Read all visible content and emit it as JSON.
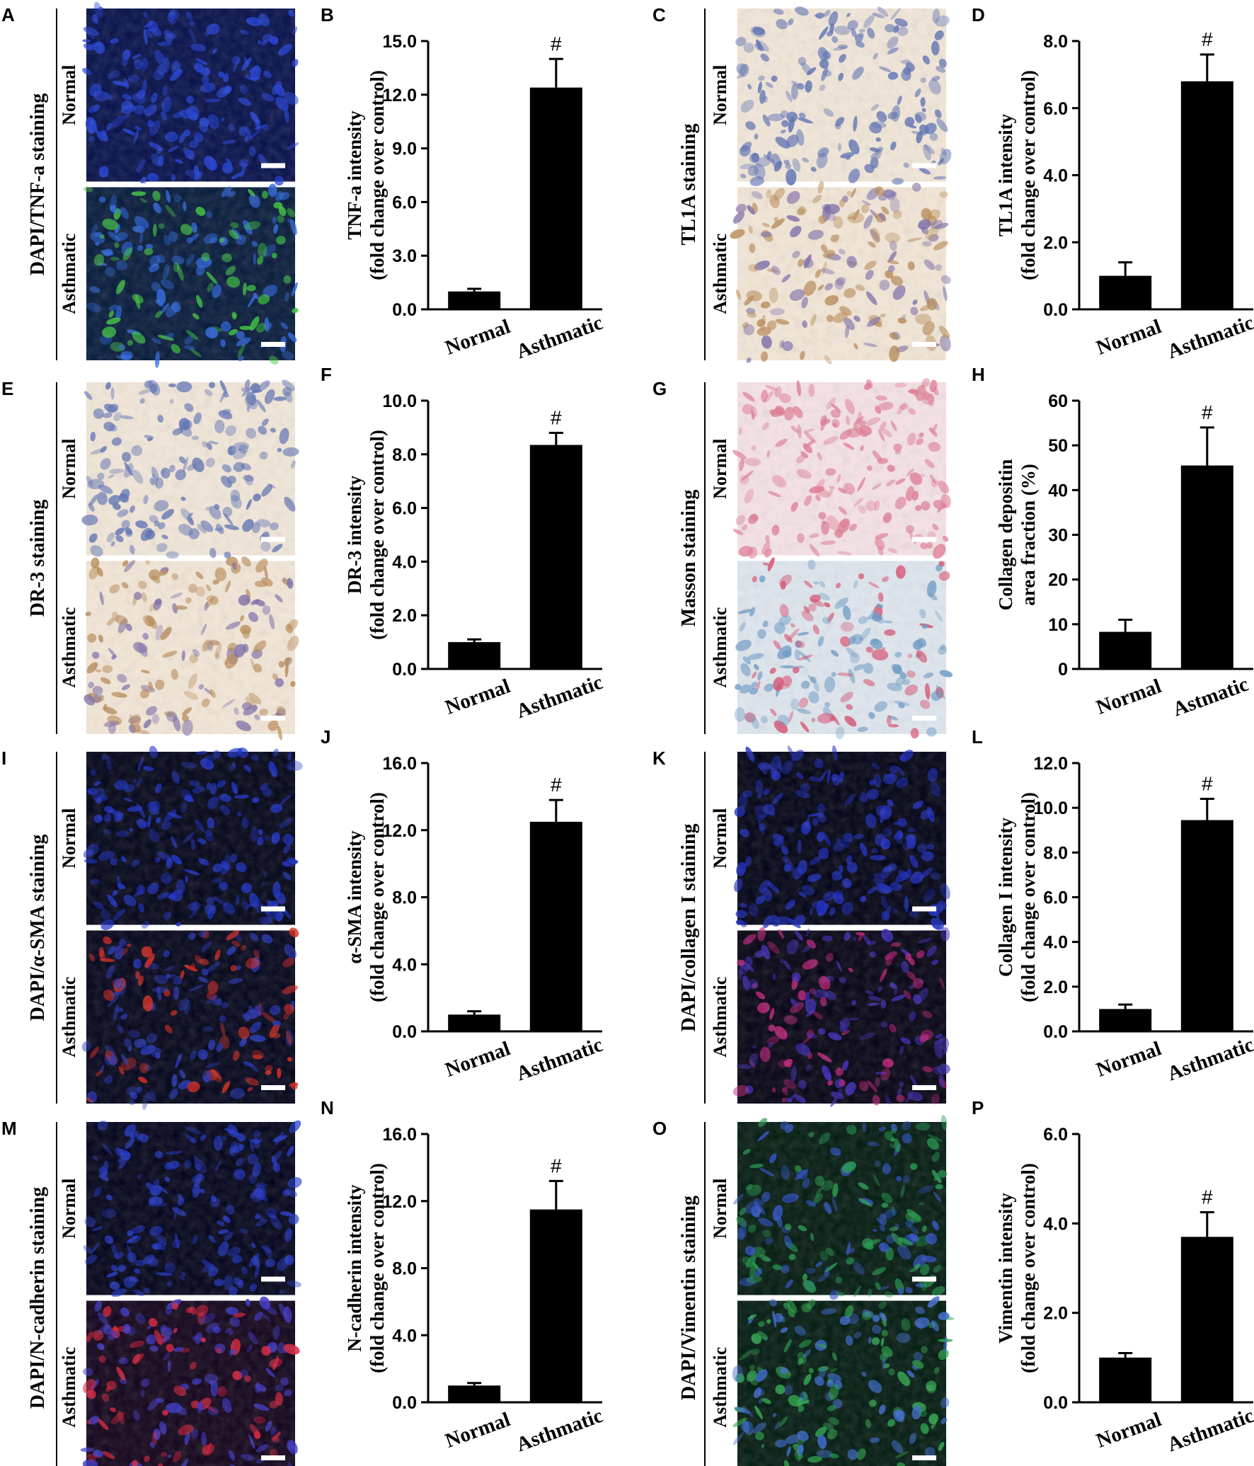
{
  "colors": {
    "bar": "#000000",
    "axis": "#000000",
    "background": "#ffffff",
    "scale_bar": "#ffffff"
  },
  "groups": [
    "Normal",
    "Asthmatic"
  ],
  "image_panels": [
    {
      "letter": "A",
      "label": "DAPI/TNF-a staining",
      "row_labels": [
        "Normal",
        "Asthmatic"
      ],
      "style": "fluor-blue-green"
    },
    {
      "letter": "C",
      "label": "TL1A staining",
      "row_labels": [
        "Normal",
        "Asthmatic"
      ],
      "style": "ihc"
    },
    {
      "letter": "E",
      "label": "DR-3 staining",
      "row_labels": [
        "Normal",
        "Asthmatic"
      ],
      "style": "ihc"
    },
    {
      "letter": "G",
      "label": "Masson staining",
      "row_labels": [
        "Normal",
        "Asthmatic"
      ],
      "style": "masson"
    },
    {
      "letter": "I",
      "label": "DAPI/α-SMA staining",
      "row_labels": [
        "Normal",
        "Asthmatic"
      ],
      "style": "fluor-blue-red"
    },
    {
      "letter": "K",
      "label": "DAPI/collagen I staining",
      "row_labels": [
        "Normal",
        "Asthmatic"
      ],
      "style": "fluor-blue-magenta"
    },
    {
      "letter": "M",
      "label": "DAPI/N-cadherin staining",
      "row_labels": [
        "Normal",
        "Asthmatic"
      ],
      "style": "fluor-blue-red2"
    },
    {
      "letter": "O",
      "label": "DAPI/Vimentin staining",
      "row_labels": [
        "Normal",
        "Asthmatic"
      ],
      "style": "fluor-green"
    }
  ],
  "chart_data": [
    {
      "letter": "B",
      "type": "bar",
      "categories": [
        "Normal",
        "Asthmatic"
      ],
      "values": [
        1.0,
        12.4
      ],
      "errors": [
        0.15,
        1.6
      ],
      "ylabel_lines": [
        "TNF-a intensity",
        "(fold change over control)"
      ],
      "ylim": [
        0,
        15
      ],
      "yticks": [
        "0.0",
        "3.0",
        "6.0",
        "9.0",
        "12.0",
        "15.0"
      ],
      "annotation": "#",
      "annotation_index": 1
    },
    {
      "letter": "D",
      "type": "bar",
      "categories": [
        "Normal",
        "Asthmatic"
      ],
      "values": [
        1.0,
        6.8
      ],
      "errors": [
        0.4,
        0.8
      ],
      "ylabel_lines": [
        "TL1A intensity",
        "(fold change over control)"
      ],
      "ylim": [
        0,
        8
      ],
      "yticks": [
        "0.0",
        "2.0",
        "4.0",
        "6.0",
        "8.0"
      ],
      "annotation": "#",
      "annotation_index": 1
    },
    {
      "letter": "F",
      "type": "bar",
      "categories": [
        "Normal",
        "Asthmatic"
      ],
      "values": [
        1.0,
        8.35
      ],
      "errors": [
        0.1,
        0.45
      ],
      "ylabel_lines": [
        "DR-3 intensity",
        "(fold change over control)"
      ],
      "ylim": [
        0,
        10
      ],
      "yticks": [
        "0.0",
        "2.0",
        "4.0",
        "6.0",
        "8.0",
        "10.0"
      ],
      "annotation": "#",
      "annotation_index": 1
    },
    {
      "letter": "H",
      "type": "bar",
      "categories": [
        "Normal",
        "Astmatic"
      ],
      "values": [
        8.3,
        45.5
      ],
      "errors": [
        2.7,
        8.5
      ],
      "ylabel_lines": [
        "Collagen depositin",
        "area fraction (%)"
      ],
      "ylim": [
        0,
        60
      ],
      "yticks": [
        "0",
        "10",
        "20",
        "30",
        "40",
        "50",
        "60"
      ],
      "annotation": "#",
      "annotation_index": 1
    },
    {
      "letter": "J",
      "type": "bar",
      "categories": [
        "Normal",
        "Asthmatic"
      ],
      "values": [
        1.0,
        12.5
      ],
      "errors": [
        0.2,
        1.3
      ],
      "ylabel_lines": [
        "α-SMA intensity",
        "(fold change over control)"
      ],
      "ylim": [
        0,
        16
      ],
      "yticks": [
        "0.0",
        "4.0",
        "8.0",
        "12.0",
        "16.0"
      ],
      "annotation": "#",
      "annotation_index": 1
    },
    {
      "letter": "L",
      "type": "bar",
      "categories": [
        "Normal",
        "Asthmatic"
      ],
      "values": [
        1.0,
        9.45
      ],
      "errors": [
        0.2,
        0.95
      ],
      "ylabel_lines": [
        "Collagen I intensity",
        "(fold change over control)"
      ],
      "ylim": [
        0,
        12
      ],
      "yticks": [
        "0.0",
        "2.0",
        "4.0",
        "6.0",
        "8.0",
        "10.0",
        "12.0"
      ],
      "annotation": "#",
      "annotation_index": 1
    },
    {
      "letter": "N",
      "type": "bar",
      "categories": [
        "Normal",
        "Asthmatic"
      ],
      "values": [
        1.0,
        11.5
      ],
      "errors": [
        0.15,
        1.7
      ],
      "ylabel_lines": [
        "N-cadherin intensity",
        "(fold change over control)"
      ],
      "ylim": [
        0,
        16
      ],
      "yticks": [
        "0.0",
        "4.0",
        "8.0",
        "12.0",
        "16.0"
      ],
      "annotation": "#",
      "annotation_index": 1
    },
    {
      "letter": "P",
      "type": "bar",
      "categories": [
        "Normal",
        "Asthmatic"
      ],
      "values": [
        1.0,
        3.7
      ],
      "errors": [
        0.1,
        0.55
      ],
      "ylabel_lines": [
        "Vimentin intensity",
        "(fold change over control)"
      ],
      "ylim": [
        0,
        6
      ],
      "yticks": [
        "0.0",
        "2.0",
        "4.0",
        "6.0"
      ],
      "annotation": "#",
      "annotation_index": 1
    }
  ]
}
